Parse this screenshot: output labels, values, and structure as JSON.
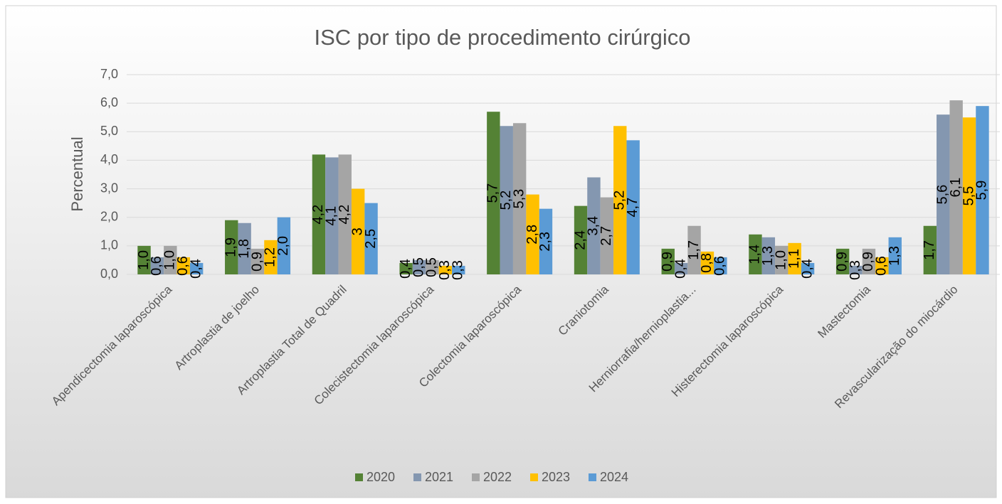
{
  "chart_data": {
    "type": "bar",
    "title": "ISC por tipo de procedimento cirúrgico",
    "y_label": "Percentual",
    "categories": [
      "Apendicectomia laparoscópica",
      "Artroplastia de joelho",
      "Artroplastia Total de Quadril",
      "Colecistectomia laparoscópica",
      "Colectomia laparoscópica",
      "Craniotomia",
      "Herniorrafia/hernioplastia...",
      "Histerectomia laparoscópica",
      "Mastectomia",
      "Revascularização do miocárdio"
    ],
    "series": [
      {
        "name": "2020",
        "color": "#548235",
        "values": [
          1.0,
          1.9,
          4.2,
          0.4,
          5.7,
          2.4,
          0.9,
          1.4,
          0.9,
          1.7
        ],
        "value_labels": [
          "1,0",
          "1,9",
          "4,2",
          "0,4",
          "5,7",
          "2,4",
          "0,9",
          "1,4",
          "0,9",
          "1,7"
        ]
      },
      {
        "name": "2021",
        "color": "#8497b0",
        "values": [
          0.6,
          1.8,
          4.1,
          0.5,
          5.2,
          3.4,
          0.4,
          1.3,
          0.3,
          5.6
        ],
        "value_labels": [
          "0,6",
          "1,8",
          "4,1",
          "0,5",
          "5,2",
          "3,4",
          "0,4",
          "1,3",
          "0,3",
          "5,6"
        ]
      },
      {
        "name": "2022",
        "color": "#a5a5a5",
        "values": [
          1.0,
          0.9,
          4.2,
          0.5,
          5.3,
          2.7,
          1.7,
          1.0,
          0.9,
          6.1
        ],
        "value_labels": [
          "1,0",
          "0,9",
          "4,2",
          "0,5",
          "5,3",
          "2,7",
          "1,7",
          "1,0",
          "0,9",
          "6,1"
        ]
      },
      {
        "name": "2023",
        "color": "#ffc000",
        "values": [
          0.6,
          1.2,
          3,
          0.3,
          2.8,
          5.2,
          0.8,
          1.1,
          0.6,
          5.5
        ],
        "value_labels": [
          "0,6",
          "1,2",
          "3",
          "0,3",
          "2,8",
          "5,2",
          "0,8",
          "1,1",
          "0,6",
          "5,5"
        ]
      },
      {
        "name": "2024",
        "color": "#5b9bd5",
        "values": [
          0.4,
          2.0,
          2.5,
          0.3,
          2.3,
          4.7,
          0.6,
          0.4,
          1.3,
          5.9
        ],
        "value_labels": [
          "0,4",
          "2,0",
          "2,5",
          "0,3",
          "2,3",
          "4,7",
          "0,6",
          "0,4",
          "1,3",
          "5,9"
        ]
      }
    ],
    "ylim": [
      0,
      7
    ],
    "yticks": [
      {
        "value": 0,
        "label": "0,0"
      },
      {
        "value": 1,
        "label": "1,0"
      },
      {
        "value": 2,
        "label": "2,0"
      },
      {
        "value": 3,
        "label": "3,0"
      },
      {
        "value": 4,
        "label": "4,0"
      },
      {
        "value": 5,
        "label": "5,0"
      },
      {
        "value": 6,
        "label": "6,0"
      },
      {
        "value": 7,
        "label": "7,0"
      }
    ],
    "grid": true,
    "legend": "bottom"
  }
}
